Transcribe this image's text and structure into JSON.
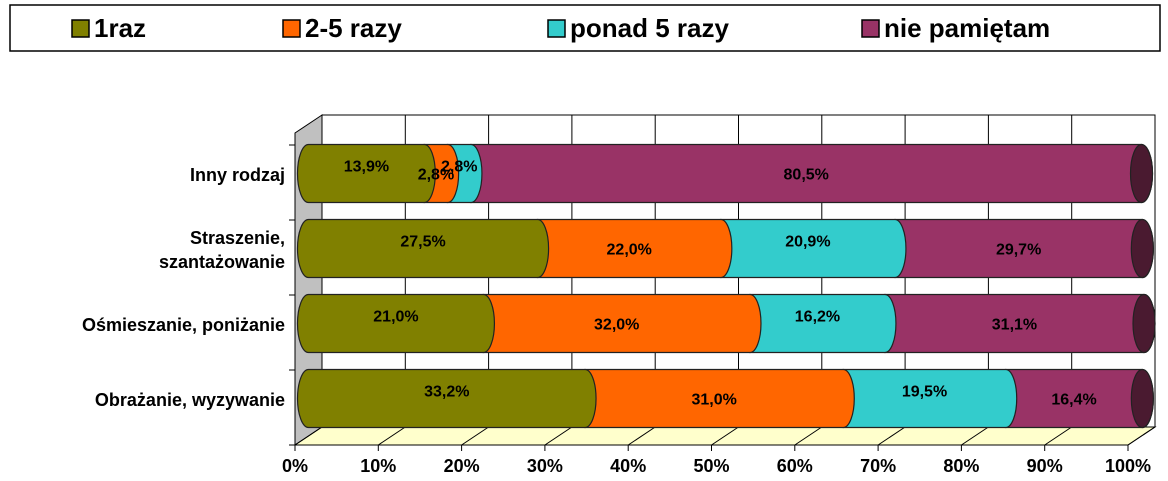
{
  "chart_data": {
    "type": "stacked-bar-horizontal",
    "categories": [
      "Inny rodzaj",
      "Straszenie,\nszantażowanie",
      "Ośmieszanie, poniżanie",
      "Obrażanie, wyzywanie"
    ],
    "series": [
      {
        "name": "1raz",
        "color": "#808000",
        "values": [
          13.9,
          27.5,
          21.0,
          33.2
        ],
        "value_labels": [
          "13,9%",
          "27,5%",
          "21,0%",
          "33,2%"
        ]
      },
      {
        "name": "2-5 razy",
        "color": "#ff6600",
        "values": [
          2.8,
          22.0,
          32.0,
          31.0
        ],
        "value_labels": [
          "2,8%",
          "22,0%",
          "32,0%",
          "31,0%"
        ]
      },
      {
        "name": "ponad 5 razy",
        "color": "#33cccc",
        "values": [
          2.8,
          20.9,
          16.2,
          19.5
        ],
        "value_labels": [
          "2,8%",
          "20,9%",
          "16,2%",
          "19,5%"
        ]
      },
      {
        "name": "nie pamiętam",
        "color": "#993366",
        "values": [
          80.5,
          29.7,
          31.1,
          16.4
        ],
        "value_labels": [
          "80,5%",
          "29,7%",
          "31,1%",
          "16,4%"
        ]
      }
    ],
    "xlim": [
      0,
      100
    ],
    "xticks": [
      {
        "value": 0,
        "label": "0%"
      },
      {
        "value": 10,
        "label": "10%"
      },
      {
        "value": 20,
        "label": "20%"
      },
      {
        "value": 30,
        "label": "30%"
      },
      {
        "value": 40,
        "label": "40%"
      },
      {
        "value": 50,
        "label": "50%"
      },
      {
        "value": 60,
        "label": "60%"
      },
      {
        "value": 70,
        "label": "70%"
      },
      {
        "value": 80,
        "label": "80%"
      },
      {
        "value": 90,
        "label": "90%"
      },
      {
        "value": 100,
        "label": "100%"
      }
    ],
    "grid": true,
    "legend": "top"
  }
}
